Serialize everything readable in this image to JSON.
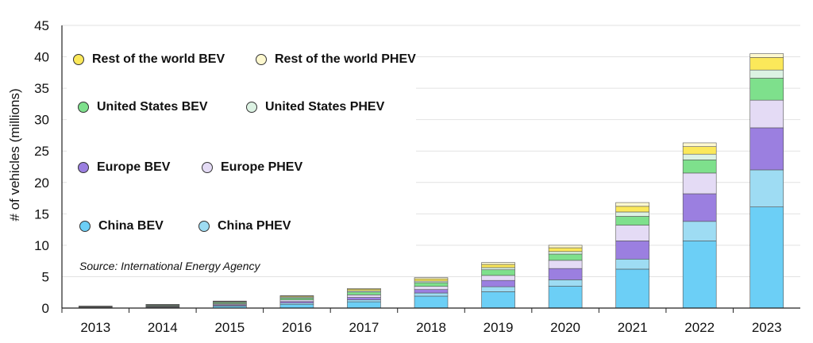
{
  "chart_data": {
    "type": "bar",
    "stacked": true,
    "title": "",
    "xlabel": "",
    "ylabel": "# of vehicles (millions)",
    "ylim": [
      0,
      45
    ],
    "yticks": [
      0,
      5,
      10,
      15,
      20,
      25,
      30,
      35,
      40,
      45
    ],
    "grid": true,
    "legend_position": "top-left",
    "source": "Source:  International Energy Agency",
    "categories": [
      "2013",
      "2014",
      "2015",
      "2016",
      "2017",
      "2018",
      "2019",
      "2020",
      "2021",
      "2022",
      "2023"
    ],
    "series": [
      {
        "name": "China BEV",
        "color": "#6ccff6",
        "values": [
          0.05,
          0.12,
          0.3,
          0.6,
          1.0,
          1.9,
          2.6,
          3.5,
          6.2,
          10.7,
          16.1
        ]
      },
      {
        "name": "China PHEV",
        "color": "#9edcf3",
        "values": [
          0.03,
          0.06,
          0.1,
          0.2,
          0.3,
          0.5,
          0.8,
          1.0,
          1.6,
          3.1,
          5.9
        ]
      },
      {
        "name": "Europe BEV",
        "color": "#9b7fe0",
        "values": [
          0.05,
          0.08,
          0.15,
          0.25,
          0.4,
          0.55,
          1.0,
          1.8,
          2.9,
          4.4,
          6.7
        ]
      },
      {
        "name": "Europe PHEV",
        "color": "#e4dbf5",
        "values": [
          0.03,
          0.07,
          0.15,
          0.25,
          0.4,
          0.5,
          0.8,
          1.3,
          2.5,
          3.3,
          4.4
        ]
      },
      {
        "name": "United States BEV",
        "color": "#7ee08c",
        "values": [
          0.08,
          0.12,
          0.2,
          0.3,
          0.45,
          0.6,
          0.9,
          1.0,
          1.4,
          2.1,
          3.5
        ]
      },
      {
        "name": "United States PHEV",
        "color": "#dcf2e3",
        "values": [
          0.05,
          0.08,
          0.1,
          0.15,
          0.2,
          0.25,
          0.35,
          0.4,
          0.7,
          0.9,
          1.3
        ]
      },
      {
        "name": "Rest of the world BEV",
        "color": "#fbe85a",
        "values": [
          0.02,
          0.04,
          0.08,
          0.15,
          0.25,
          0.35,
          0.5,
          0.6,
          0.9,
          1.2,
          2.0
        ]
      },
      {
        "name": "Rest of the world PHEV",
        "color": "#fdf8cf",
        "values": [
          0.01,
          0.02,
          0.04,
          0.08,
          0.12,
          0.2,
          0.3,
          0.4,
          0.6,
          0.6,
          0.6
        ]
      }
    ]
  }
}
